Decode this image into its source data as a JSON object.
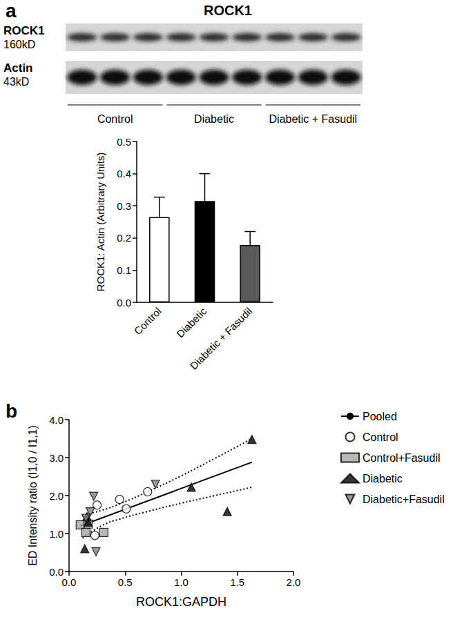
{
  "panel_labels": [
    "a",
    "b"
  ],
  "blot": {
    "title": "ROCK1",
    "rows": [
      {
        "label": "ROCK1",
        "size": "160kD"
      },
      {
        "label": "Actin",
        "size": "43kD"
      }
    ],
    "groups": [
      "Control",
      "Diabetic",
      "Diabetic + Fasudil"
    ]
  },
  "chart_data": [
    {
      "type": "bar",
      "categories": [
        "Control",
        "Diabetic",
        "Diabetic + Fasudil"
      ],
      "values": [
        0.265,
        0.315,
        0.178
      ],
      "errors": [
        0.062,
        0.085,
        0.042
      ],
      "colors": [
        "#ffffff",
        "#000000",
        "#595959"
      ],
      "y_label": "ROCK1: Actin (Arbitrary Units)",
      "ylim": [
        0,
        0.5
      ],
      "yticks": [
        {
          "value": 0,
          "label": "0.0"
        },
        0.1,
        0.2,
        0.3,
        0.4,
        0.5
      ],
      "grid": false
    },
    {
      "type": "scatter",
      "x_label": "ROCK1:GAPDH",
      "y_label": "ED Intensity ratio (I1,0 / I1,1)",
      "xlim": [
        0,
        2
      ],
      "xticks": [
        {
          "value": 0,
          "label": "0.0"
        },
        0.5,
        {
          "value": 1,
          "label": "1.0"
        },
        1.5,
        {
          "value": 2,
          "label": "2.0"
        }
      ],
      "ylim": [
        0,
        4
      ],
      "yticks": [
        {
          "value": 0,
          "label": "0.0"
        },
        {
          "value": 1,
          "label": "1.0"
        },
        {
          "value": 2,
          "label": "2.0"
        },
        {
          "value": 3,
          "label": "3.0"
        },
        {
          "value": 4,
          "label": "4.0"
        }
      ],
      "grid": false,
      "legend": "right",
      "series": [
        {
          "name": "Pooled",
          "type": "line",
          "color": "#000000",
          "line_style": "solid",
          "x": [
            0.1,
            1.63
          ],
          "values": [
            1.2,
            2.88
          ],
          "band": {
            "line_style": "dotted",
            "x": [
              0.12,
              0.3,
              0.45,
              0.7,
              1.0,
              1.3,
              1.63
            ],
            "upper": [
              1.48,
              1.62,
              1.78,
              2.1,
              2.52,
              2.98,
              3.5
            ],
            "lower": [
              0.88,
              1.22,
              1.38,
              1.58,
              1.8,
              2.0,
              2.22
            ]
          }
        },
        {
          "name": "Control",
          "type": "scatter",
          "color": "#ffffff",
          "marker": "circle",
          "x": [
            0.23,
            0.25,
            0.45,
            0.51,
            0.7
          ],
          "values": [
            0.95,
            1.75,
            1.9,
            1.65,
            2.1
          ]
        },
        {
          "name": "Control+Fasudil",
          "type": "scatter",
          "color": "#a6a6a6",
          "marker": "square",
          "x": [
            0.1,
            0.15,
            0.17,
            0.31
          ],
          "values": [
            1.23,
            1.03,
            1.25,
            1.03
          ]
        },
        {
          "name": "Diabetic",
          "type": "scatter",
          "color": "#000000",
          "marker": "triangle",
          "x": [
            0.14,
            0.16,
            0.17,
            1.09,
            1.41,
            1.63
          ],
          "values": [
            0.6,
            1.45,
            1.3,
            2.22,
            1.58,
            3.48
          ]
        },
        {
          "name": "Diabetic+Fasudil",
          "type": "scatter",
          "color": "#808080",
          "marker": "triangle-down",
          "x": [
            0.15,
            0.19,
            0.22,
            0.24,
            0.77
          ],
          "values": [
            1.4,
            1.57,
            1.98,
            0.52,
            2.3
          ]
        }
      ]
    }
  ]
}
